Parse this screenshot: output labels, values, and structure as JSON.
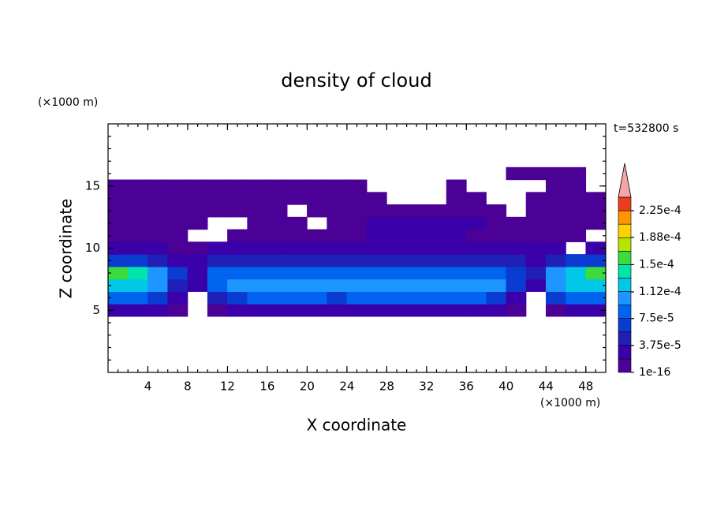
{
  "chart_data": {
    "type": "contour",
    "title": "density of cloud",
    "x_label": "X coordinate",
    "y_label": "Z coordinate",
    "x_unit": "(×1000 m)",
    "y_unit": "(×1000 m)",
    "annotation": "t=532800 s",
    "xlim": [
      0,
      50
    ],
    "ylim": [
      0,
      20
    ],
    "xticks": [
      4,
      8,
      12,
      16,
      20,
      24,
      28,
      32,
      36,
      40,
      44,
      48
    ],
    "yticks": [
      5,
      10,
      15
    ],
    "minor_step": 1,
    "levels": [
      1e-16,
      1.875e-05,
      3.75e-05,
      5.625e-05,
      7.5e-05,
      9.375e-05,
      0.0001125,
      0.00013125,
      0.00015,
      0.00016875,
      0.0001875,
      0.00020625,
      0.000225,
      0.00024375
    ],
    "colors": [
      "#4b0096",
      "#3a00aa",
      "#2020b8",
      "#0a3cd2",
      "#0064f0",
      "#1e96ff",
      "#00c8e6",
      "#00e6aa",
      "#3cdc3c",
      "#b4e600",
      "#ffd200",
      "#ff9600",
      "#f03c1e"
    ],
    "extend_color": "#f4a6a6",
    "cticks": [
      {
        "value": 1e-16,
        "label": "1e-16"
      },
      {
        "value": 3.75e-05,
        "label": "3.75e-5"
      },
      {
        "value": 7.5e-05,
        "label": "7.5e-5"
      },
      {
        "value": 0.000112,
        "label": "1.12e-4"
      },
      {
        "value": 0.00015,
        "label": "1.5e-4"
      },
      {
        "value": 0.000188,
        "label": "1.88e-4"
      },
      {
        "value": 0.000225,
        "label": "2.25e-4"
      }
    ],
    "field": {
      "x": [
        1,
        3,
        5,
        7,
        9,
        11,
        13,
        15,
        17,
        19,
        21,
        23,
        25,
        27,
        29,
        31,
        33,
        35,
        37,
        39,
        41,
        43,
        45,
        47,
        49
      ],
      "z": [
        5,
        6,
        7,
        8,
        9,
        10,
        11,
        12,
        13,
        14,
        15,
        16
      ],
      "values": [
        [
          2e-05,
          2e-05,
          2e-05,
          1e-05,
          null,
          1e-05,
          2e-05,
          2e-05,
          2e-05,
          2e-05,
          2e-05,
          2e-05,
          2e-05,
          2e-05,
          2e-05,
          2e-05,
          2e-05,
          2e-05,
          2e-05,
          2e-05,
          1e-05,
          null,
          1e-05,
          2e-05,
          2e-05
        ],
        [
          9e-05,
          8e-05,
          7e-05,
          3e-05,
          null,
          4e-05,
          7e-05,
          8e-05,
          8e-05,
          8e-05,
          8e-05,
          7e-05,
          8e-05,
          8e-05,
          8e-05,
          8e-05,
          8e-05,
          8e-05,
          8e-05,
          7e-05,
          3e-05,
          null,
          6e-05,
          8e-05,
          9e-05
        ],
        [
          0.00013,
          0.00012,
          0.0001,
          5e-05,
          2e-05,
          8e-05,
          0.0001,
          0.000105,
          0.00011,
          0.00011,
          0.000105,
          0.000105,
          0.00011,
          0.00011,
          0.000105,
          0.00011,
          0.00011,
          0.000105,
          0.00011,
          0.00011,
          6e-05,
          2e-05,
          0.0001,
          0.00012,
          0.00013
        ],
        [
          0.00016,
          0.00014,
          0.00011,
          6e-05,
          3e-05,
          9e-05,
          9e-05,
          8e-05,
          9e-05,
          9e-05,
          8e-05,
          9e-05,
          9e-05,
          8e-05,
          9e-05,
          9e-05,
          8e-05,
          9e-05,
          9e-05,
          9e-05,
          7e-05,
          4e-05,
          0.00011,
          0.00013,
          0.00015
        ],
        [
          7e-05,
          6e-05,
          5e-05,
          3e-05,
          2e-05,
          5e-05,
          5e-05,
          5e-05,
          5e-05,
          5e-05,
          5e-05,
          5e-05,
          5e-05,
          5e-05,
          5e-05,
          5e-05,
          5e-05,
          5e-05,
          5e-05,
          5e-05,
          4e-05,
          3e-05,
          5e-05,
          6e-05,
          6e-05
        ],
        [
          3e-05,
          2e-05,
          2e-05,
          1e-05,
          1e-05,
          2e-05,
          3e-05,
          3e-05,
          3e-05,
          3e-05,
          3e-05,
          3e-05,
          3e-05,
          3e-05,
          3e-05,
          3e-05,
          3e-05,
          3e-05,
          3e-05,
          2e-05,
          2e-05,
          2e-05,
          2e-05,
          null,
          3e-05
        ],
        [
          5e-06,
          1e-05,
          1e-05,
          1e-05,
          null,
          null,
          1e-05,
          1e-05,
          1e-05,
          1e-05,
          1e-05,
          1e-05,
          1e-05,
          2e-05,
          2e-05,
          2e-05,
          2e-05,
          2e-05,
          1e-05,
          1e-05,
          1e-05,
          1e-05,
          1e-05,
          5e-06,
          null
        ],
        [
          1e-05,
          1e-05,
          5e-06,
          5e-06,
          5e-06,
          null,
          null,
          5e-06,
          1e-05,
          5e-06,
          null,
          5e-06,
          1e-05,
          2e-05,
          2e-05,
          3e-05,
          3e-05,
          2e-05,
          2e-05,
          1e-05,
          1e-05,
          1e-05,
          1e-05,
          1e-05,
          1e-05
        ],
        [
          1e-05,
          1e-05,
          5e-06,
          5e-06,
          5e-06,
          5e-06,
          5e-06,
          5e-06,
          5e-06,
          null,
          5e-06,
          5e-06,
          1e-05,
          1e-05,
          1e-05,
          1e-05,
          1e-05,
          1e-05,
          1e-05,
          5e-06,
          null,
          5e-06,
          5e-06,
          5e-06,
          5e-06
        ],
        [
          5e-06,
          5e-06,
          5e-06,
          5e-06,
          5e-06,
          5e-06,
          5e-06,
          5e-06,
          5e-06,
          5e-06,
          5e-06,
          5e-06,
          5e-06,
          5e-06,
          null,
          null,
          null,
          5e-06,
          5e-06,
          null,
          null,
          5e-06,
          5e-06,
          5e-06,
          5e-06
        ],
        [
          5e-06,
          5e-06,
          5e-06,
          5e-06,
          5e-06,
          5e-06,
          5e-06,
          5e-06,
          5e-06,
          5e-06,
          5e-06,
          5e-06,
          5e-06,
          null,
          null,
          null,
          null,
          5e-06,
          null,
          null,
          null,
          null,
          5e-06,
          5e-06,
          null
        ],
        [
          null,
          null,
          null,
          null,
          null,
          null,
          null,
          null,
          null,
          null,
          null,
          null,
          null,
          null,
          null,
          null,
          null,
          null,
          null,
          null,
          5e-06,
          5e-06,
          5e-06,
          5e-06,
          null
        ]
      ]
    }
  }
}
